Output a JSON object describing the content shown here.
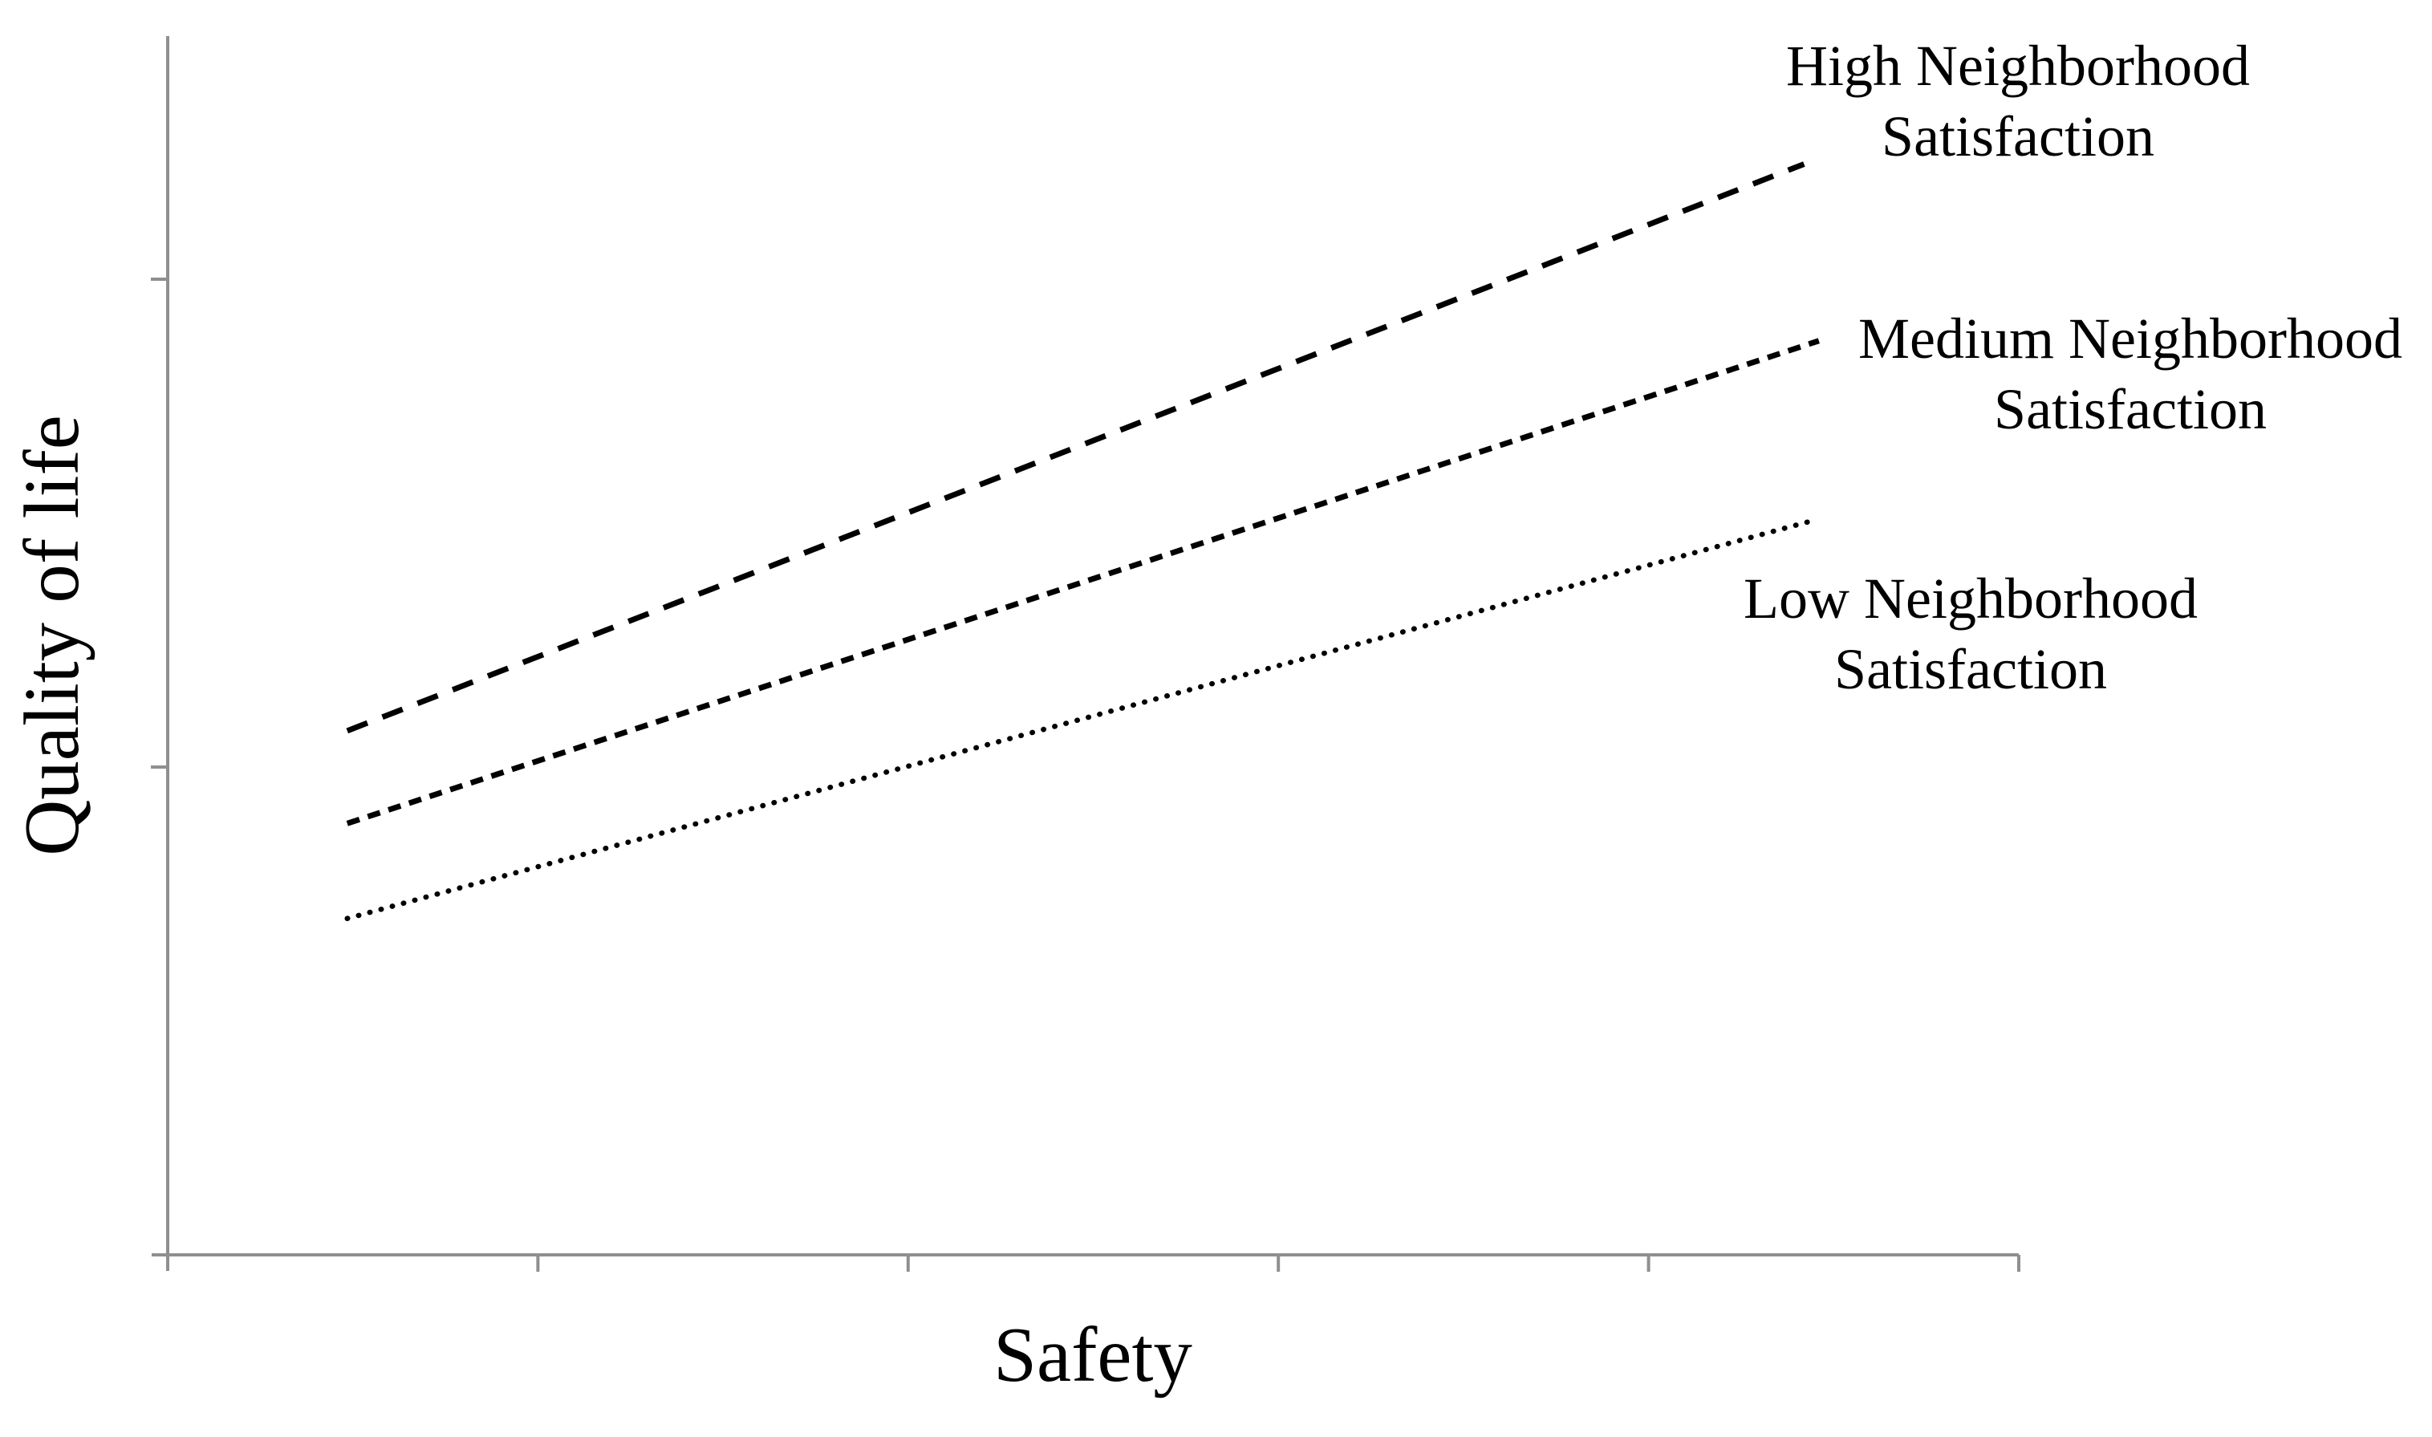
{
  "figure": {
    "background": "#ffffff",
    "axis_color": "#8f8f8f",
    "line_color": "#000000",
    "text_color": "#000000",
    "x_axis_title": "Safety",
    "y_axis_title": "Quality of life"
  },
  "annotations": [
    {
      "id": "high",
      "line1": "High Neighborhood",
      "line2": "Satisfaction"
    },
    {
      "id": "medium",
      "line1": "Medium Neighborhood",
      "line2": "Satisfaction"
    },
    {
      "id": "low",
      "line1": "Low Neighborhood",
      "line2": "Satisfaction"
    }
  ],
  "chart_data": {
    "type": "line",
    "title": "",
    "xlabel": "Safety",
    "ylabel": "Quality of life",
    "x_axis": {
      "min": 0,
      "max": 1,
      "tick_count": 5,
      "tick_labels": []
    },
    "y_axis": {
      "min": 0,
      "max": 100,
      "tick_count": 2,
      "tick_labels": []
    },
    "grid": false,
    "legend": "labels-at-line-ends-right",
    "series": [
      {
        "id": "high",
        "name": "High Neighborhood Satisfaction",
        "style": "long-dash",
        "x": [
          0.097,
          0.884
        ],
        "values": [
          43.0,
          89.5
        ]
      },
      {
        "id": "medium",
        "name": "Medium Neighborhood Satisfaction",
        "style": "short-dash",
        "x": [
          0.097,
          0.892
        ],
        "values": [
          35.4,
          75.0
        ]
      },
      {
        "id": "low",
        "name": "Low Neighborhood Satisfaction",
        "style": "dotted",
        "x": [
          0.097,
          0.89
        ],
        "values": [
          27.6,
          60.3
        ]
      }
    ]
  }
}
